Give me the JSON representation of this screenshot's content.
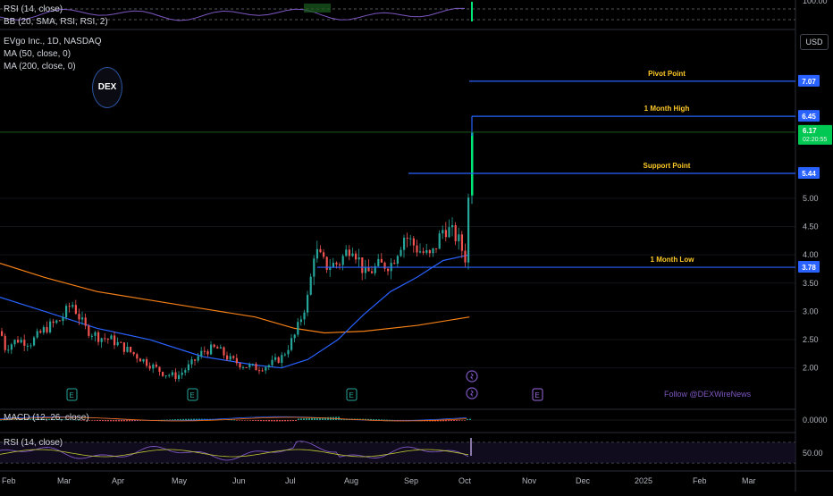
{
  "legend": {
    "title": "EVgo Inc., 1D, NASDAQ",
    "ma50": "MA (50, close, 0)",
    "ma200": "MA (200, close, 0)",
    "rsi_top": "RSI (14, close)",
    "bb_top": "BB (20, SMA, RSI, RSI, 2)",
    "macd": "MACD (12, 26, close)",
    "rsi_bottom": "RSI (14, close)"
  },
  "logo_text": "DEX",
  "currency": "USD",
  "watermark": "Follow @DEXWireNews",
  "chart_data": {
    "type": "candlestick",
    "x_ticks": [
      "Feb",
      "Mar",
      "Apr",
      "May",
      "Jun",
      "Jul",
      "Aug",
      "Sep",
      "Oct",
      "Nov",
      "Dec",
      "2025",
      "Feb",
      "Mar"
    ],
    "y_ticks": [
      "5.00",
      "4.50",
      "4.00",
      "3.50",
      "3.00",
      "2.50",
      "2.00"
    ],
    "ylim": [
      1.6,
      7.4
    ],
    "price_levels": [
      {
        "label": "Pivot Point",
        "value": "7.07",
        "color": "#2962ff"
      },
      {
        "label": "1 Month High",
        "value": "6.45",
        "color": "#2962ff"
      },
      {
        "label": "Support Point",
        "value": "5.44",
        "color": "#2962ff"
      },
      {
        "label": "1 Month Low",
        "value": "3.78",
        "color": "#2962ff"
      }
    ],
    "last_price": {
      "value": "6.17",
      "countdown": "02:20:55",
      "color": "#00c853"
    },
    "top_panel": {
      "label": "100.00"
    },
    "macd_panel": {
      "label": "0.0000"
    },
    "rsi_panel": {
      "label": "50.00"
    },
    "events": [
      "E",
      "E",
      "E",
      "E"
    ],
    "series": {
      "close_path": [
        [
          "Jan 22",
          2.65
        ],
        [
          "Jan 29",
          2.35
        ],
        [
          "Feb 5",
          2.5
        ],
        [
          "Feb 12",
          2.45
        ],
        [
          "Feb 20",
          2.7
        ],
        [
          "Feb 28",
          2.85
        ],
        [
          "Mar 5",
          3.15
        ],
        [
          "Mar 12",
          2.7
        ],
        [
          "Mar 19",
          2.55
        ],
        [
          "Mar 26",
          2.5
        ],
        [
          "Apr 2",
          2.35
        ],
        [
          "Apr 9",
          2.2
        ],
        [
          "Apr 16",
          2.05
        ],
        [
          "Apr 23",
          1.9
        ],
        [
          "Apr 30",
          1.85
        ],
        [
          "May 7",
          2.05
        ],
        [
          "May 14",
          2.3
        ],
        [
          "May 21",
          2.35
        ],
        [
          "May 28",
          2.15
        ],
        [
          "Jun 4",
          2.05
        ],
        [
          "Jun 11",
          2.0
        ],
        [
          "Jun 18",
          2.05
        ],
        [
          "Jun 25",
          2.2
        ],
        [
          "Jul 2",
          2.6
        ],
        [
          "Jul 9",
          3.3
        ],
        [
          "Jul 12",
          4.1
        ],
        [
          "Jul 18",
          3.8
        ],
        [
          "Jul 25",
          3.85
        ],
        [
          "Aug 1",
          4.2
        ],
        [
          "Aug 8",
          3.65
        ],
        [
          "Aug 15",
          3.8
        ],
        [
          "Aug 22",
          3.85
        ],
        [
          "Aug 29",
          4.35
        ],
        [
          "Sep 5",
          4.1
        ],
        [
          "Sep 12",
          3.95
        ],
        [
          "Sep 19",
          4.5
        ],
        [
          "Sep 26",
          4.3
        ],
        [
          "Oct 1",
          3.9
        ],
        [
          "Oct 3",
          6.17
        ]
      ],
      "ma50": [
        [
          "Jan 22",
          3.25
        ],
        [
          "Feb 20",
          3.0
        ],
        [
          "Mar 19",
          2.7
        ],
        [
          "Apr 16",
          2.5
        ],
        [
          "May 14",
          2.2
        ],
        [
          "Jun 11",
          2.05
        ],
        [
          "Jun 25",
          2.0
        ],
        [
          "Jul 9",
          2.15
        ],
        [
          "Jul 25",
          2.5
        ],
        [
          "Aug 8",
          2.95
        ],
        [
          "Aug 22",
          3.35
        ],
        [
          "Sep 5",
          3.6
        ],
        [
          "Sep 19",
          3.9
        ],
        [
          "Oct 3",
          4.0
        ]
      ],
      "ma200": [
        [
          "Jan 22",
          3.85
        ],
        [
          "Feb 20",
          3.6
        ],
        [
          "Mar 19",
          3.35
        ],
        [
          "Apr 16",
          3.2
        ],
        [
          "May 14",
          3.05
        ],
        [
          "Jun 11",
          2.9
        ],
        [
          "Jul 2",
          2.7
        ],
        [
          "Jul 18",
          2.62
        ],
        [
          "Aug 8",
          2.65
        ],
        [
          "Sep 5",
          2.75
        ],
        [
          "Oct 3",
          2.9
        ]
      ]
    }
  }
}
